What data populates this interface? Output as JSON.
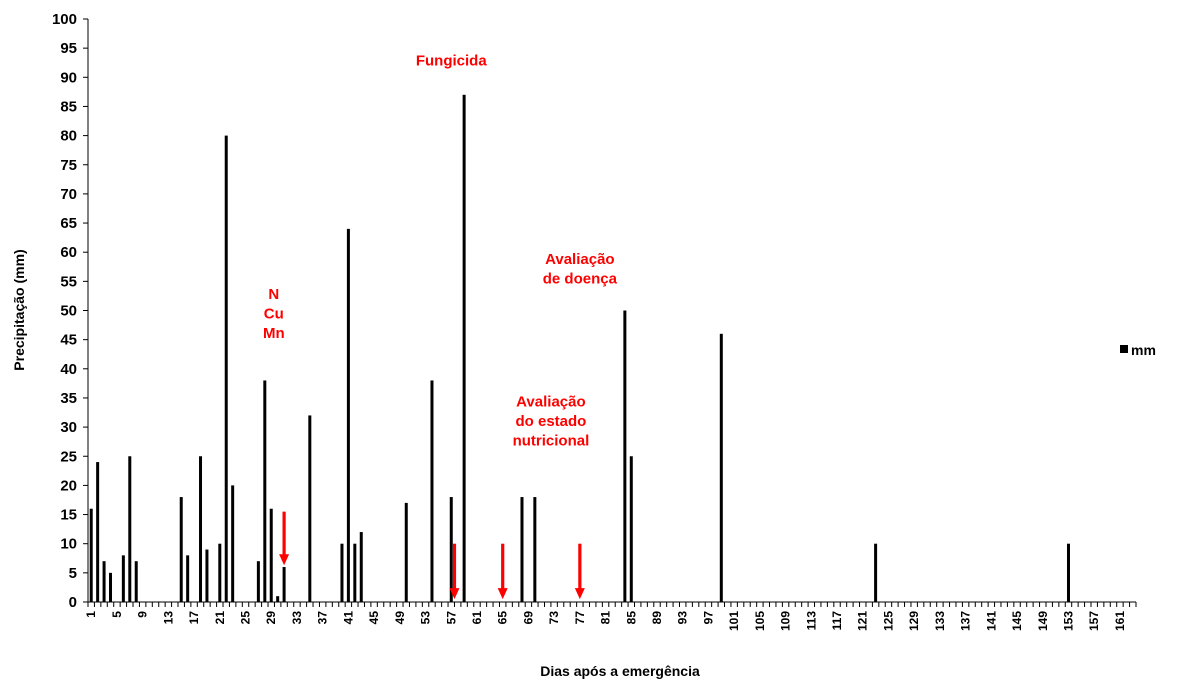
{
  "chart_data": {
    "type": "bar",
    "xlabel": "Dias após a emergência",
    "ylabel": "Precipitação (mm)",
    "ylim": [
      0,
      100
    ],
    "ytick_step": 5,
    "xlim": [
      1,
      163
    ],
    "xtick_labels": [
      1,
      5,
      9,
      13,
      17,
      21,
      25,
      29,
      33,
      37,
      41,
      45,
      49,
      53,
      57,
      61,
      65,
      69,
      73,
      77,
      81,
      85,
      89,
      93,
      97,
      101,
      105,
      109,
      113,
      117,
      121,
      125,
      129,
      133,
      137,
      141,
      145,
      149,
      153,
      157,
      161
    ],
    "grid": false,
    "legend_position": "right",
    "series": [
      {
        "name": "mm",
        "color": "#000000",
        "points": [
          {
            "x": 1,
            "y": 16
          },
          {
            "x": 2,
            "y": 24
          },
          {
            "x": 3,
            "y": 7
          },
          {
            "x": 4,
            "y": 5
          },
          {
            "x": 6,
            "y": 8
          },
          {
            "x": 7,
            "y": 25
          },
          {
            "x": 8,
            "y": 7
          },
          {
            "x": 15,
            "y": 18
          },
          {
            "x": 16,
            "y": 8
          },
          {
            "x": 18,
            "y": 25
          },
          {
            "x": 19,
            "y": 9
          },
          {
            "x": 21,
            "y": 10
          },
          {
            "x": 22,
            "y": 80
          },
          {
            "x": 23,
            "y": 20
          },
          {
            "x": 27,
            "y": 7
          },
          {
            "x": 28,
            "y": 38
          },
          {
            "x": 29,
            "y": 16
          },
          {
            "x": 30,
            "y": 1
          },
          {
            "x": 31,
            "y": 6
          },
          {
            "x": 35,
            "y": 32
          },
          {
            "x": 40,
            "y": 10
          },
          {
            "x": 41,
            "y": 64
          },
          {
            "x": 42,
            "y": 10
          },
          {
            "x": 43,
            "y": 12
          },
          {
            "x": 50,
            "y": 17
          },
          {
            "x": 54,
            "y": 38
          },
          {
            "x": 57,
            "y": 18
          },
          {
            "x": 59,
            "y": 87
          },
          {
            "x": 68,
            "y": 18
          },
          {
            "x": 70,
            "y": 18
          },
          {
            "x": 84,
            "y": 50
          },
          {
            "x": 85,
            "y": 25
          },
          {
            "x": 99,
            "y": 46
          },
          {
            "x": 123,
            "y": 10
          },
          {
            "x": 153,
            "y": 10
          }
        ]
      }
    ],
    "annotations": [
      {
        "lines": [
          "N",
          "Cu",
          "Mn"
        ],
        "color": "#ff0000",
        "label_x": 29.4,
        "label_y": 52,
        "arrow_x": 31,
        "arrow_from": 15.5,
        "arrow_to": 6.3
      },
      {
        "lines": [
          "Fungicida"
        ],
        "color": "#ff0000",
        "label_x": 57,
        "label_y": 92,
        "arrow_x": 57.5,
        "arrow_from": 10,
        "arrow_to": 0.5
      },
      {
        "lines": [
          "Avaliação",
          "do estado",
          "nutricional"
        ],
        "color": "#ff0000",
        "label_x": 72.5,
        "label_y": 33.5,
        "arrow_x": 65,
        "arrow_from": 10,
        "arrow_to": 0.5
      },
      {
        "lines": [
          "Avaliação",
          "de doença"
        ],
        "color": "#ff0000",
        "label_x": 77,
        "label_y": 58,
        "arrow_x": 77,
        "arrow_from": 10,
        "arrow_to": 0.5
      }
    ]
  }
}
